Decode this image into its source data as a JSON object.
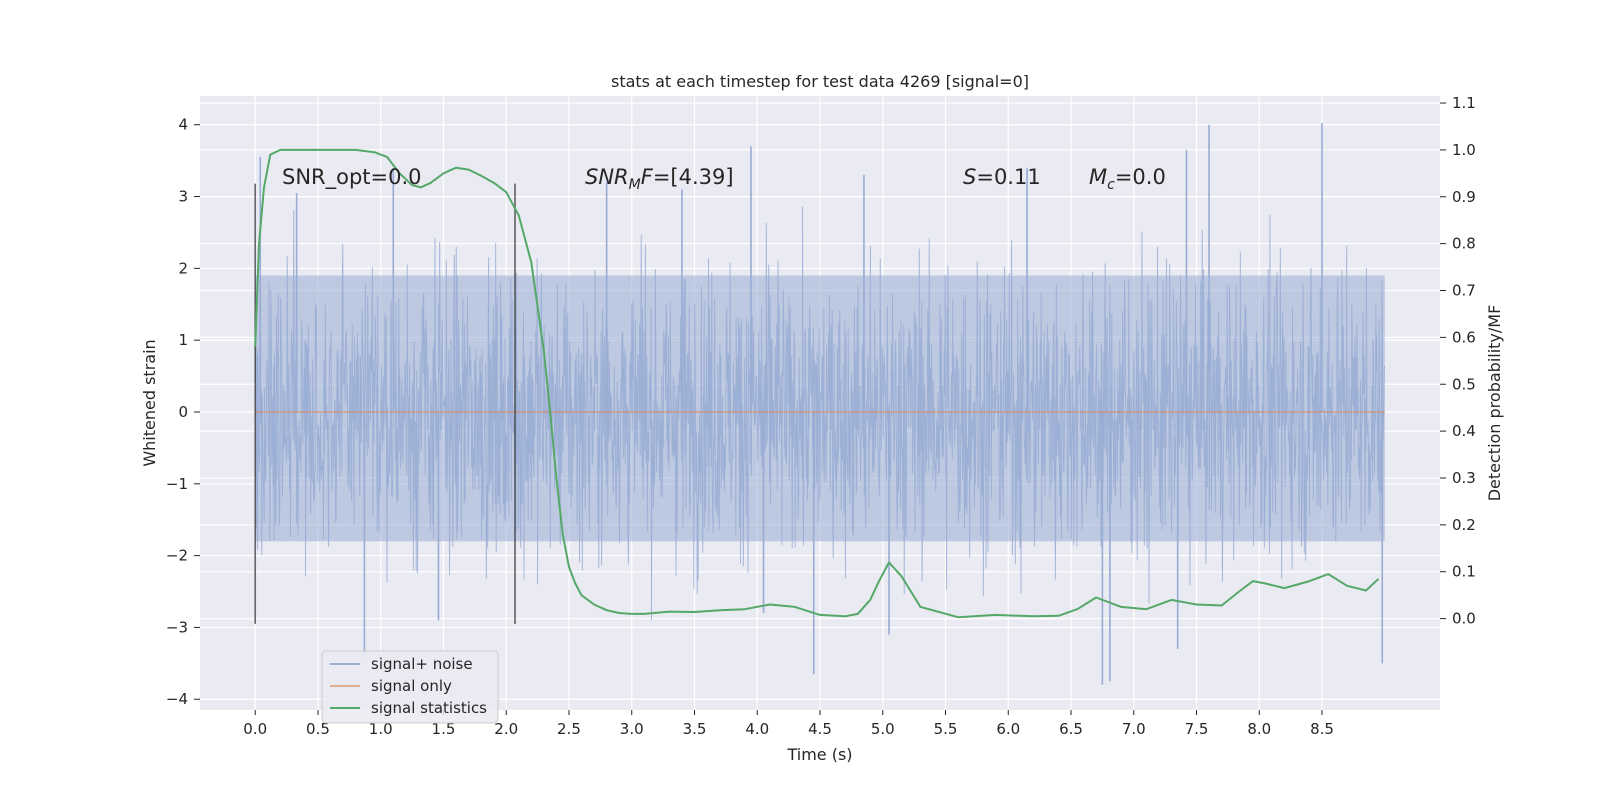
{
  "chart_data": {
    "type": "line",
    "title": "stats at each timestep for test data 4269 [signal=0]",
    "xlabel": "Time (s)",
    "ylabel_left": "Whitened strain",
    "ylabel_right": "Detection probability/MF",
    "xlim": [
      -0.44,
      9.44
    ],
    "ylim_left": [
      -4.15,
      4.4
    ],
    "ylim_right": [
      -0.195,
      1.115
    ],
    "x_ticks": [
      0.0,
      0.5,
      1.0,
      1.5,
      2.0,
      2.5,
      3.0,
      3.5,
      4.0,
      4.5,
      5.0,
      5.5,
      6.0,
      6.5,
      7.0,
      7.5,
      8.0,
      8.5
    ],
    "x_tick_labels": [
      "0.0",
      "0.5",
      "1.0",
      "1.5",
      "2.0",
      "2.5",
      "3.0",
      "3.5",
      "4.0",
      "4.5",
      "5.0",
      "5.5",
      "6.0",
      "6.5",
      "7.0",
      "7.5",
      "8.0",
      "8.5"
    ],
    "y_left_ticks": [
      4,
      3,
      2,
      1,
      0,
      -1,
      -2,
      -3,
      -4
    ],
    "y_left_tick_labels": [
      "4",
      "3",
      "2",
      "1",
      "0",
      "−1",
      "−2",
      "−3",
      "−4"
    ],
    "y_right_ticks": [
      1.1,
      1.0,
      0.9,
      0.8,
      0.7,
      0.6,
      0.5,
      0.4,
      0.3,
      0.2,
      0.1,
      0.0
    ],
    "y_right_tick_labels": [
      "1.1",
      "1.0",
      "0.9",
      "0.8",
      "0.7",
      "0.6",
      "0.5",
      "0.4",
      "0.3",
      "0.2",
      "0.1",
      "0.0"
    ],
    "grid": true,
    "legend_position": "lower-left",
    "series": [
      {
        "name": "signal+ noise",
        "axis": "left",
        "color": "#98acd4",
        "style": "noise",
        "x_range": [
          0.0,
          9.0
        ],
        "band_lower": -1.8,
        "band_upper": 1.9,
        "peaks_x": [
          0.04,
          0.33,
          0.87,
          1.1,
          1.46,
          2.8,
          3.4,
          3.95,
          4.05,
          4.45,
          4.85,
          5.05,
          6.15,
          6.75,
          6.81,
          7.35,
          7.42,
          7.6,
          8.5,
          8.98
        ],
        "peaks_y": [
          3.55,
          3.05,
          -3.4,
          3.4,
          -2.9,
          3.2,
          3.1,
          3.7,
          -2.8,
          -3.65,
          3.3,
          -3.1,
          3.4,
          -3.8,
          -3.75,
          -3.3,
          3.65,
          4.0,
          4.02,
          -3.5
        ]
      },
      {
        "name": "signal only",
        "axis": "left",
        "color": "#dd8452",
        "x": [
          0.0,
          9.0
        ],
        "y": [
          0.0,
          0.0
        ]
      },
      {
        "name": "signal statistics",
        "axis": "right",
        "color": "#55a868",
        "x": [
          0.0,
          0.03,
          0.07,
          0.12,
          0.2,
          0.4,
          0.6,
          0.8,
          0.95,
          1.05,
          1.15,
          1.25,
          1.32,
          1.4,
          1.5,
          1.6,
          1.7,
          1.8,
          1.9,
          2.0,
          2.1,
          2.2,
          2.3,
          2.35,
          2.4,
          2.45,
          2.5,
          2.55,
          2.6,
          2.7,
          2.8,
          2.9,
          3.0,
          3.1,
          3.3,
          3.5,
          3.7,
          3.9,
          4.1,
          4.3,
          4.5,
          4.7,
          4.8,
          4.9,
          4.97,
          5.05,
          5.15,
          5.3,
          5.6,
          5.9,
          6.2,
          6.4,
          6.55,
          6.7,
          6.9,
          7.1,
          7.3,
          7.5,
          7.7,
          7.85,
          7.95,
          8.05,
          8.2,
          8.4,
          8.55,
          8.7,
          8.85,
          8.95
        ],
        "y": [
          0.58,
          0.8,
          0.92,
          0.99,
          1.0,
          1.0,
          1.0,
          1.0,
          0.995,
          0.985,
          0.95,
          0.925,
          0.92,
          0.93,
          0.95,
          0.962,
          0.958,
          0.945,
          0.93,
          0.91,
          0.86,
          0.76,
          0.57,
          0.44,
          0.3,
          0.18,
          0.11,
          0.075,
          0.05,
          0.03,
          0.018,
          0.012,
          0.01,
          0.01,
          0.015,
          0.014,
          0.018,
          0.02,
          0.03,
          0.025,
          0.008,
          0.005,
          0.01,
          0.04,
          0.08,
          0.12,
          0.09,
          0.025,
          0.003,
          0.008,
          0.005,
          0.006,
          0.02,
          0.045,
          0.025,
          0.02,
          0.04,
          0.03,
          0.028,
          0.06,
          0.08,
          0.075,
          0.065,
          0.08,
          0.095,
          0.07,
          0.06,
          0.085
        ]
      }
    ],
    "markers": [
      {
        "x": 0.0,
        "y1": -2.95,
        "y2": 3.18
      },
      {
        "x": 2.07,
        "y1": -2.95,
        "y2": 3.18
      }
    ],
    "annotations": [
      {
        "id": "snr_opt",
        "text": "SNR_opt=0.0",
        "x": 0.2,
        "y": 3.15
      },
      {
        "id": "snr_mf",
        "text": "SNR_MF=[4.39]",
        "x": 2.6,
        "y": 3.15
      },
      {
        "id": "s_val",
        "text": "S=0.11",
        "x": 5.6,
        "y": 3.15
      },
      {
        "id": "mc_val",
        "text": "M_c=0.0",
        "x": 6.6,
        "y": 3.15
      }
    ]
  },
  "labels": {
    "snr_opt": "SNR_opt=0.0",
    "snr_mf_main": "SNR",
    "snr_mf_sub": "M",
    "snr_mf_italic": "F",
    "snr_mf_value": "=[4.39]",
    "s_main": "S",
    "s_value": "=0.11",
    "mc_main": "M",
    "mc_sub": "c",
    "mc_value": "=0.0"
  },
  "legend": {
    "items": [
      {
        "label": "signal+ noise",
        "color": "#98acd4"
      },
      {
        "label": "signal only",
        "color": "#dd8452"
      },
      {
        "label": "signal statistics",
        "color": "#55a868"
      }
    ]
  },
  "colors": {
    "axes_bg": "#eaeaf2",
    "grid": "#ffffff",
    "marker": "#333333"
  }
}
